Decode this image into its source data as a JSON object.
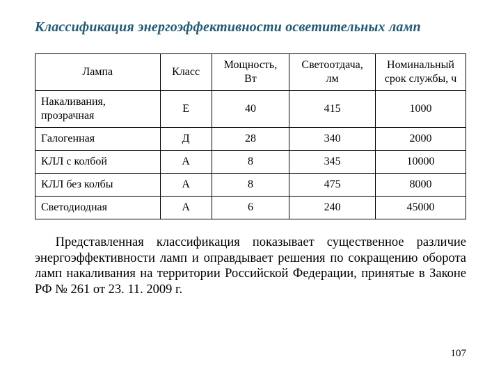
{
  "title": "Классификация энергоэффективности осветительных ламп",
  "table": {
    "headers": {
      "lamp": "Лампа",
      "class": "Класс",
      "power": "Мощность, Вт",
      "lum": "Светоотдача, лм",
      "life": "Номинальный срок службы, ч"
    },
    "rows": [
      {
        "lamp": "Накаливания, прозрачная",
        "class": "Е",
        "power": "40",
        "lum": "415",
        "life": "1000"
      },
      {
        "lamp": "Галогенная",
        "class": "Д",
        "power": "28",
        "lum": "340",
        "life": "2000"
      },
      {
        "lamp": "КЛЛ с колбой",
        "class": "А",
        "power": "8",
        "lum": "345",
        "life": "10000"
      },
      {
        "lamp": "КЛЛ без колбы",
        "class": "А",
        "power": "8",
        "lum": "475",
        "life": "8000"
      },
      {
        "lamp": "Светодиодная",
        "class": "А",
        "power": "6",
        "lum": "240",
        "life": "45000"
      }
    ]
  },
  "paragraph": "Представленная классификация показывает существенное различие энергоэффективности ламп и оправдывает решения по сокращению оборота ламп накаливания на территории Российской Федерации, принятые в Законе РФ № 261 от 23. 11. 2009 г.",
  "page_number": "107",
  "colors": {
    "title_color": "#1f5a7a",
    "text_color": "#000000",
    "border_color": "#000000",
    "background": "#ffffff"
  }
}
